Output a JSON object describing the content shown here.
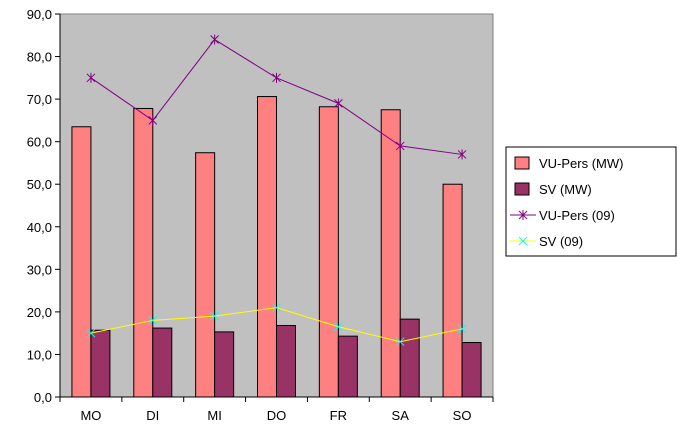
{
  "chart_data": {
    "type": "bar",
    "categories": [
      "MO",
      "DI",
      "MI",
      "DO",
      "FR",
      "SA",
      "SO"
    ],
    "ylim": [
      0,
      90
    ],
    "yticks": [
      "0,0",
      "10,0",
      "20,0",
      "30,0",
      "40,0",
      "50,0",
      "60,0",
      "70,0",
      "80,0",
      "90,0"
    ],
    "grid": false,
    "legend_position": "right",
    "plot_background": "#c0c0c0",
    "series": [
      {
        "name": "VU-Pers (MW)",
        "kind": "bar",
        "color": "#ff8080",
        "values": [
          63.5,
          67.8,
          57.4,
          70.6,
          68.2,
          67.5,
          50.0
        ]
      },
      {
        "name": "SV (MW)",
        "kind": "bar",
        "color": "#993366",
        "values": [
          15.7,
          16.2,
          15.3,
          16.8,
          14.3,
          18.3,
          12.8
        ]
      },
      {
        "name": "VU-Pers (09)",
        "kind": "line",
        "marker": "star",
        "color": "#800080",
        "values": [
          75.0,
          65.0,
          84.0,
          75.0,
          69.0,
          59.0,
          57.0
        ]
      },
      {
        "name": "SV (09)",
        "kind": "line",
        "marker": "x",
        "color": "#ffff00",
        "marker_color": "#00ffff",
        "values": [
          15.0,
          18.0,
          19.0,
          21.0,
          16.5,
          13.0,
          16.0
        ]
      }
    ]
  }
}
